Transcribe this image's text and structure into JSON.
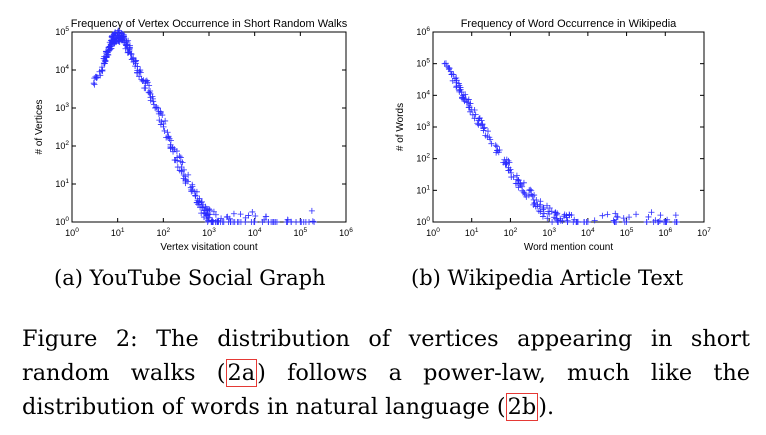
{
  "figure": {
    "subcaption_a": "(a) YouTube Social Graph",
    "subcaption_b": "(b) Wikipedia Article Text",
    "caption": {
      "label": "Figure 2:",
      "part1": " The distribution of vertices appearing in short random walks (",
      "ref_a": "2a",
      "part2": ") follows a power-law, much like the distribution of words in natural language (",
      "ref_b": "2b",
      "part3": ")."
    }
  },
  "chart_data": [
    {
      "type": "scatter",
      "title": "Frequency of Vertex Occurrence in Short Random Walks",
      "xlabel": "Vertex visitation count",
      "ylabel": "# of Vertices",
      "xscale": "log",
      "yscale": "log",
      "xlim": [
        1,
        1000000
      ],
      "ylim": [
        1,
        100000
      ],
      "xticks": [
        "10^0",
        "10^1",
        "10^2",
        "10^3",
        "10^4",
        "10^5",
        "10^6"
      ],
      "yticks": [
        "10^0",
        "10^1",
        "10^2",
        "10^3",
        "10^4",
        "10^5"
      ],
      "marker": "plus",
      "color": "#2b2bff",
      "points": [
        [
          3,
          4500
        ],
        [
          4,
          9000
        ],
        [
          5,
          15000
        ],
        [
          5.5,
          22000
        ],
        [
          6,
          30000
        ],
        [
          6.5,
          38000
        ],
        [
          7,
          48000
        ],
        [
          7.5,
          55000
        ],
        [
          8,
          62000
        ],
        [
          8.5,
          70000
        ],
        [
          9,
          78000
        ],
        [
          10,
          80000
        ],
        [
          11,
          76000
        ],
        [
          12,
          70000
        ],
        [
          13,
          62000
        ],
        [
          14,
          55000
        ],
        [
          16,
          45000
        ],
        [
          18,
          35000
        ],
        [
          20,
          26000
        ],
        [
          25,
          15000
        ],
        [
          30,
          9000
        ],
        [
          40,
          4500
        ],
        [
          50,
          2500
        ],
        [
          60,
          1500
        ],
        [
          80,
          700
        ],
        [
          100,
          380
        ],
        [
          130,
          180
        ],
        [
          160,
          90
        ],
        [
          200,
          50
        ],
        [
          250,
          28
        ],
        [
          300,
          16
        ],
        [
          400,
          8
        ],
        [
          500,
          5
        ],
        [
          600,
          3.5
        ],
        [
          700,
          2.5
        ],
        [
          800,
          2
        ],
        [
          900,
          1.6
        ],
        [
          1000,
          1.3
        ],
        [
          1200,
          1.1
        ],
        [
          1500,
          1
        ],
        [
          2000,
          1
        ],
        [
          3000,
          1
        ],
        [
          5000,
          1
        ],
        [
          10000,
          1
        ],
        [
          20000,
          1
        ],
        [
          50000,
          1
        ],
        [
          100000,
          1
        ],
        [
          200000,
          1
        ]
      ]
    },
    {
      "type": "scatter",
      "title": "Frequency of Word Occurrence in Wikipedia",
      "xlabel": "Word mention count",
      "ylabel": "# of Words",
      "xscale": "log",
      "yscale": "log",
      "xlim": [
        1,
        10000000
      ],
      "ylim": [
        1,
        1000000
      ],
      "xticks": [
        "10^0",
        "10^1",
        "10^2",
        "10^3",
        "10^4",
        "10^5",
        "10^6",
        "10^7"
      ],
      "yticks": [
        "10^0",
        "10^1",
        "10^2",
        "10^3",
        "10^4",
        "10^5",
        "10^6"
      ],
      "marker": "plus",
      "color": "#2b2bff",
      "points": [
        [
          2,
          100000
        ],
        [
          3,
          45000
        ],
        [
          4,
          25000
        ],
        [
          5,
          15000
        ],
        [
          6,
          10000
        ],
        [
          8,
          6000
        ],
        [
          10,
          3500
        ],
        [
          15,
          1600
        ],
        [
          20,
          900
        ],
        [
          30,
          400
        ],
        [
          50,
          160
        ],
        [
          80,
          70
        ],
        [
          100,
          45
        ],
        [
          150,
          22
        ],
        [
          200,
          13
        ],
        [
          300,
          7
        ],
        [
          400,
          5
        ],
        [
          500,
          3.5
        ],
        [
          700,
          2.5
        ],
        [
          1000,
          1.8
        ],
        [
          1500,
          1.3
        ],
        [
          2000,
          1.1
        ],
        [
          3000,
          1
        ],
        [
          5000,
          1
        ],
        [
          10000,
          1
        ],
        [
          50000,
          1
        ],
        [
          100000,
          1
        ],
        [
          500000,
          1
        ],
        [
          1000000,
          1
        ],
        [
          2000000,
          1
        ]
      ]
    }
  ]
}
